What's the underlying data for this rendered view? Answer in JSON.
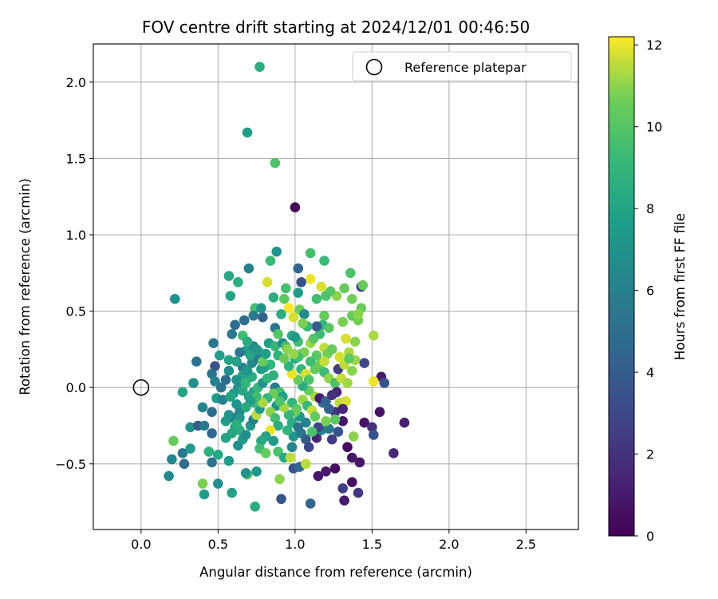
{
  "chart_data": {
    "type": "scatter",
    "title": "FOV centre drift starting at 2024/12/01 00:46:50",
    "xlabel": "Angular distance from reference (arcmin)",
    "ylabel": "Rotation from reference (arcmin)",
    "xlim": [
      -0.31,
      2.84
    ],
    "ylim": [
      -0.93,
      2.25
    ],
    "xticks": [
      0.0,
      0.5,
      1.0,
      1.5,
      2.0,
      2.5
    ],
    "xtick_labels": [
      "0.0",
      "0.5",
      "1.0",
      "1.5",
      "2.0",
      "2.5"
    ],
    "yticks": [
      -0.5,
      0.0,
      0.5,
      1.0,
      1.5,
      2.0
    ],
    "ytick_labels": [
      "−0.5",
      "0.0",
      "0.5",
      "1.0",
      "1.5",
      "2.0"
    ],
    "grid": true,
    "legend": {
      "position": "top-right",
      "entries": [
        "Reference platepar"
      ]
    },
    "colorbar": {
      "label": "Hours from first FF file",
      "range": [
        0,
        12.2
      ],
      "ticks": [
        0,
        2,
        4,
        6,
        8,
        10,
        12
      ],
      "tick_labels": [
        "0",
        "2",
        "4",
        "6",
        "8",
        "10",
        "12"
      ],
      "colormap": "viridis"
    },
    "reference_point": {
      "x": 0.0,
      "y": 0.0,
      "label": "Reference platepar"
    },
    "columns": [
      "x",
      "y",
      "hours"
    ],
    "points": [
      [
        0.77,
        2.1,
        8.5
      ],
      [
        0.69,
        1.67,
        7.6
      ],
      [
        0.87,
        1.47,
        9.8
      ],
      [
        1.0,
        1.18,
        0.2
      ],
      [
        0.88,
        0.89,
        7.1
      ],
      [
        1.1,
        0.88,
        9.6
      ],
      [
        1.19,
        0.83,
        9.3
      ],
      [
        0.7,
        0.78,
        6.0
      ],
      [
        1.02,
        0.78,
        4.5
      ],
      [
        0.22,
        0.58,
        7.0
      ],
      [
        0.57,
        0.73,
        8.2
      ],
      [
        0.63,
        0.69,
        8.5
      ],
      [
        0.58,
        0.6,
        8.0
      ],
      [
        0.74,
        0.52,
        9.5
      ],
      [
        0.73,
        0.47,
        5.6
      ],
      [
        0.61,
        0.41,
        4.8
      ],
      [
        0.59,
        0.35,
        5.6
      ],
      [
        0.79,
        0.46,
        4.3
      ],
      [
        0.47,
        0.29,
        5.5
      ],
      [
        0.36,
        0.17,
        5.2
      ],
      [
        0.51,
        0.21,
        7.5
      ],
      [
        0.57,
        0.18,
        8.0
      ],
      [
        0.48,
        0.14,
        3.5
      ],
      [
        0.46,
        0.09,
        5.3
      ],
      [
        0.34,
        0.03,
        6.8
      ],
      [
        0.27,
        -0.03,
        8.0
      ],
      [
        0.49,
        -0.07,
        7.5
      ],
      [
        0.53,
        -0.08,
        6.1
      ],
      [
        0.46,
        -0.16,
        5.0
      ],
      [
        0.4,
        -0.13,
        6.2
      ],
      [
        0.32,
        -0.26,
        7.0
      ],
      [
        0.37,
        -0.25,
        4.0
      ],
      [
        0.41,
        -0.25,
        5.7
      ],
      [
        0.46,
        -0.3,
        4.5
      ],
      [
        0.21,
        -0.35,
        10.5
      ],
      [
        0.27,
        -0.43,
        5.6
      ],
      [
        0.32,
        -0.4,
        7.4
      ],
      [
        0.2,
        -0.47,
        6.2
      ],
      [
        0.28,
        -0.5,
        4.8
      ],
      [
        0.18,
        -0.58,
        6.5
      ],
      [
        0.46,
        -0.49,
        5.2
      ],
      [
        0.5,
        -0.44,
        8.2
      ],
      [
        0.44,
        -0.42,
        8.6
      ],
      [
        0.4,
        -0.63,
        10.8
      ],
      [
        0.41,
        -0.7,
        7.5
      ],
      [
        0.5,
        -0.63,
        6.8
      ],
      [
        0.59,
        -0.69,
        7.8
      ],
      [
        0.57,
        -0.48,
        7.5
      ],
      [
        0.69,
        -0.57,
        10.2
      ],
      [
        0.74,
        -0.78,
        8.5
      ],
      [
        0.75,
        -0.55,
        7.3
      ],
      [
        0.68,
        -0.56,
        7.0
      ],
      [
        0.9,
        -0.6,
        11.0
      ],
      [
        0.91,
        -0.73,
        3.5
      ],
      [
        1.1,
        -0.76,
        4.5
      ],
      [
        0.99,
        -0.53,
        3.5
      ],
      [
        1.03,
        -0.52,
        4.5
      ],
      [
        1.07,
        -0.5,
        11.5
      ],
      [
        1.15,
        -0.58,
        0.8
      ],
      [
        1.2,
        -0.55,
        1.0
      ],
      [
        1.26,
        -0.53,
        0.5
      ],
      [
        1.32,
        -0.74,
        1.0
      ],
      [
        1.31,
        -0.66,
        2.6
      ],
      [
        1.37,
        -0.62,
        0.6
      ],
      [
        1.41,
        -0.69,
        2.2
      ],
      [
        1.42,
        -0.49,
        0.8
      ],
      [
        1.37,
        -0.46,
        0.9
      ],
      [
        1.34,
        -0.39,
        0.4
      ],
      [
        1.38,
        -0.32,
        11.0
      ],
      [
        1.45,
        -0.23,
        0.8
      ],
      [
        1.5,
        -0.26,
        2.0
      ],
      [
        1.51,
        -0.31,
        3.5
      ],
      [
        1.55,
        -0.16,
        0.8
      ],
      [
        1.64,
        -0.43,
        1.5
      ],
      [
        1.71,
        -0.23,
        1.2
      ],
      [
        1.56,
        0.07,
        1.0
      ],
      [
        1.58,
        0.03,
        3.5
      ],
      [
        1.51,
        0.04,
        12.0
      ],
      [
        1.45,
        0.16,
        3.0
      ],
      [
        1.35,
        0.23,
        11.3
      ],
      [
        1.39,
        0.3,
        11.0
      ],
      [
        1.33,
        0.32,
        11.8
      ],
      [
        1.31,
        0.43,
        10.8
      ],
      [
        1.37,
        0.47,
        10.5
      ],
      [
        1.41,
        0.44,
        10.7
      ],
      [
        1.43,
        0.52,
        10.5
      ],
      [
        1.37,
        0.58,
        10.7
      ],
      [
        1.41,
        0.48,
        11.0
      ],
      [
        1.51,
        0.34,
        11.3
      ],
      [
        1.43,
        0.66,
        2.5
      ],
      [
        1.44,
        0.67,
        10.5
      ],
      [
        1.36,
        0.75,
        9.8
      ],
      [
        1.32,
        0.65,
        10.5
      ],
      [
        1.27,
        0.6,
        11.0
      ],
      [
        1.23,
        0.63,
        10.2
      ],
      [
        1.2,
        0.6,
        9.8
      ],
      [
        1.17,
        0.66,
        11.8
      ],
      [
        1.14,
        0.58,
        9.5
      ],
      [
        1.1,
        0.71,
        12.0
      ],
      [
        1.04,
        0.69,
        3.5
      ],
      [
        1.02,
        0.62,
        7.5
      ],
      [
        0.94,
        0.65,
        9.6
      ],
      [
        0.93,
        0.58,
        10.3
      ],
      [
        0.86,
        0.59,
        8.5
      ],
      [
        0.82,
        0.69,
        11.8
      ],
      [
        0.84,
        0.83,
        9.3
      ],
      [
        0.96,
        0.52,
        12.2
      ],
      [
        1.03,
        0.51,
        10.6
      ],
      [
        0.99,
        0.46,
        11.8
      ],
      [
        1.06,
        0.48,
        6.6
      ],
      [
        0.91,
        0.48,
        8.5
      ],
      [
        0.78,
        0.52,
        7.0
      ],
      [
        0.67,
        0.44,
        5.0
      ],
      [
        0.66,
        0.34,
        9.5
      ],
      [
        0.73,
        0.27,
        6.2
      ],
      [
        0.68,
        0.24,
        7.5
      ],
      [
        0.77,
        0.23,
        9.0
      ],
      [
        0.83,
        0.29,
        7.6
      ],
      [
        0.87,
        0.27,
        9.0
      ],
      [
        0.87,
        0.39,
        5.5
      ],
      [
        0.89,
        0.35,
        10.0
      ],
      [
        0.92,
        0.29,
        6.5
      ],
      [
        0.98,
        0.34,
        8.5
      ],
      [
        1.02,
        0.3,
        9.5
      ],
      [
        1.04,
        0.22,
        10.5
      ],
      [
        1.1,
        0.29,
        11.2
      ],
      [
        1.12,
        0.32,
        10.0
      ],
      [
        1.19,
        0.26,
        11.5
      ],
      [
        1.21,
        0.22,
        10.7
      ],
      [
        1.16,
        0.35,
        9.4
      ],
      [
        1.18,
        0.41,
        9.0
      ],
      [
        1.22,
        0.39,
        10.1
      ],
      [
        1.19,
        0.47,
        10.5
      ],
      [
        1.14,
        0.4,
        4.0
      ],
      [
        1.08,
        0.4,
        9.0
      ],
      [
        1.05,
        0.42,
        10.8
      ],
      [
        1.0,
        0.33,
        7.3
      ],
      [
        0.94,
        0.27,
        9.7
      ],
      [
        0.89,
        0.21,
        8.7
      ],
      [
        0.84,
        0.15,
        9.0
      ],
      [
        0.8,
        0.13,
        8.0
      ],
      [
        0.78,
        0.12,
        7.5
      ],
      [
        0.73,
        0.18,
        6.5
      ],
      [
        0.66,
        0.13,
        6.0
      ],
      [
        0.66,
        0.08,
        8.0
      ],
      [
        0.62,
        0.05,
        7.0
      ],
      [
        0.63,
        0.0,
        6.8
      ],
      [
        0.66,
        -0.02,
        8.2
      ],
      [
        0.6,
        -0.04,
        7.5
      ],
      [
        0.58,
        -0.06,
        8.0
      ],
      [
        0.62,
        -0.11,
        7.2
      ],
      [
        0.64,
        -0.16,
        6.5
      ],
      [
        0.6,
        -0.2,
        5.5
      ],
      [
        0.57,
        -0.18,
        7.0
      ],
      [
        0.55,
        -0.22,
        7.4
      ],
      [
        0.61,
        -0.26,
        7.6
      ],
      [
        0.64,
        -0.28,
        8.5
      ],
      [
        0.59,
        -0.3,
        8.2
      ],
      [
        0.55,
        -0.33,
        8.0
      ],
      [
        0.63,
        -0.38,
        6.8
      ],
      [
        0.66,
        -0.34,
        7.5
      ],
      [
        0.68,
        -0.31,
        6.8
      ],
      [
        0.71,
        -0.25,
        7.1
      ],
      [
        0.73,
        -0.21,
        6.0
      ],
      [
        0.75,
        -0.18,
        11.5
      ],
      [
        0.77,
        -0.14,
        7.5
      ],
      [
        0.73,
        -0.1,
        9.5
      ],
      [
        0.7,
        -0.06,
        8.0
      ],
      [
        0.73,
        -0.03,
        8.0
      ],
      [
        0.76,
        0.0,
        9.2
      ],
      [
        0.79,
        0.03,
        7.0
      ],
      [
        0.82,
        0.06,
        9.0
      ],
      [
        0.86,
        0.08,
        8.7
      ],
      [
        0.87,
        0.0,
        5.8
      ],
      [
        0.9,
        -0.03,
        9.5
      ],
      [
        0.92,
        -0.06,
        7.8
      ],
      [
        0.88,
        -0.12,
        7.0
      ],
      [
        0.84,
        -0.16,
        11.0
      ],
      [
        0.87,
        -0.2,
        9.6
      ],
      [
        0.89,
        -0.25,
        8.5
      ],
      [
        0.84,
        -0.28,
        12.0
      ],
      [
        0.81,
        -0.32,
        7.8
      ],
      [
        0.78,
        -0.35,
        8.3
      ],
      [
        0.77,
        -0.4,
        9.5
      ],
      [
        0.81,
        -0.43,
        10.4
      ],
      [
        0.86,
        -0.35,
        7.5
      ],
      [
        0.89,
        -0.42,
        9.8
      ],
      [
        0.93,
        -0.46,
        8.3
      ],
      [
        0.97,
        -0.46,
        11.5
      ],
      [
        0.98,
        -0.39,
        6.2
      ],
      [
        0.99,
        -0.32,
        7.3
      ],
      [
        0.95,
        -0.28,
        8.9
      ],
      [
        0.98,
        -0.23,
        8.5
      ],
      [
        1.02,
        -0.26,
        5.2
      ],
      [
        1.04,
        -0.3,
        5.5
      ],
      [
        1.07,
        -0.34,
        4.0
      ],
      [
        1.09,
        -0.39,
        3.0
      ],
      [
        1.14,
        -0.33,
        1.5
      ],
      [
        1.17,
        -0.28,
        6.0
      ],
      [
        1.22,
        -0.27,
        5.5
      ],
      [
        1.24,
        -0.34,
        2.5
      ],
      [
        1.28,
        -0.29,
        3.5
      ],
      [
        1.31,
        -0.22,
        0.8
      ],
      [
        1.26,
        -0.16,
        2.0
      ],
      [
        1.22,
        -0.14,
        4.2
      ],
      [
        1.18,
        -0.1,
        5.3
      ],
      [
        1.13,
        -0.06,
        11.3
      ],
      [
        1.09,
        -0.02,
        10.5
      ],
      [
        1.05,
        0.01,
        8.5
      ],
      [
        1.02,
        0.05,
        10.5
      ],
      [
        0.98,
        0.09,
        12.0
      ],
      [
        0.96,
        0.14,
        8.8
      ],
      [
        0.93,
        0.19,
        10.5
      ],
      [
        1.0,
        0.19,
        7.9
      ],
      [
        1.04,
        0.12,
        9.2
      ],
      [
        1.07,
        0.09,
        11.8
      ],
      [
        1.09,
        0.05,
        9.8
      ],
      [
        1.13,
        0.12,
        10.4
      ],
      [
        1.16,
        0.15,
        10.5
      ],
      [
        1.19,
        0.1,
        9.3
      ],
      [
        1.22,
        0.06,
        11.1
      ],
      [
        1.26,
        0.03,
        9.8
      ],
      [
        1.27,
        -0.03,
        1.5
      ],
      [
        1.3,
        0.06,
        11.6
      ],
      [
        1.28,
        0.12,
        2.5
      ],
      [
        1.32,
        0.15,
        11.5
      ],
      [
        1.34,
        0.03,
        11.2
      ],
      [
        1.37,
        0.11,
        11.0
      ],
      [
        1.39,
        0.18,
        11.2
      ],
      [
        1.35,
        0.19,
        10.3
      ],
      [
        1.29,
        0.2,
        11.8
      ],
      [
        1.24,
        0.25,
        10.5
      ],
      [
        1.19,
        0.17,
        11.6
      ],
      [
        1.14,
        0.21,
        10.2
      ],
      [
        1.1,
        0.17,
        9.5
      ],
      [
        1.06,
        0.23,
        10.8
      ],
      [
        1.02,
        0.2,
        9.5
      ],
      [
        0.99,
        0.22,
        11.1
      ],
      [
        0.95,
        0.25,
        11.0
      ],
      [
        0.98,
        -0.1,
        8.9
      ],
      [
        1.01,
        -0.14,
        10.2
      ],
      [
        1.05,
        -0.08,
        11.1
      ],
      [
        1.08,
        -0.12,
        9.2
      ],
      [
        1.11,
        -0.15,
        11.6
      ],
      [
        1.13,
        -0.19,
        10.4
      ],
      [
        1.16,
        -0.07,
        1.0
      ],
      [
        1.2,
        -0.09,
        4.5
      ],
      [
        1.24,
        -0.05,
        2.0
      ],
      [
        1.29,
        -0.1,
        11.5
      ],
      [
        1.33,
        -0.09,
        11.8
      ],
      [
        1.31,
        -0.14,
        1.5
      ],
      [
        1.26,
        -0.21,
        10.2
      ],
      [
        1.2,
        -0.22,
        10.8
      ],
      [
        1.15,
        -0.26,
        3.0
      ],
      [
        1.11,
        -0.29,
        9.8
      ],
      [
        1.07,
        -0.23,
        6.1
      ],
      [
        1.03,
        -0.19,
        7.0
      ],
      [
        1.0,
        -0.16,
        10.5
      ],
      [
        0.96,
        -0.18,
        9.0
      ],
      [
        0.93,
        -0.13,
        11.2
      ],
      [
        0.9,
        -0.09,
        9.8
      ],
      [
        0.86,
        -0.04,
        10.6
      ],
      [
        0.82,
        -0.07,
        9.0
      ],
      [
        0.79,
        -0.1,
        11.3
      ],
      [
        0.75,
        -0.06,
        9.4
      ],
      [
        0.71,
        -0.09,
        7.6
      ],
      [
        0.68,
        -0.13,
        8.3
      ],
      [
        0.64,
        -0.2,
        7.3
      ],
      [
        0.62,
        -0.24,
        8.6
      ],
      [
        0.68,
        0.03,
        9.0
      ],
      [
        0.72,
        0.07,
        8.5
      ],
      [
        0.69,
        0.11,
        7.3
      ],
      [
        0.72,
        0.16,
        6.4
      ],
      [
        0.76,
        0.19,
        5.8
      ],
      [
        0.79,
        0.17,
        10.4
      ],
      [
        0.81,
        0.22,
        7.6
      ],
      [
        0.75,
        0.25,
        7.2
      ],
      [
        0.71,
        0.21,
        8.0
      ],
      [
        0.69,
        0.3,
        8.5
      ],
      [
        0.64,
        0.23,
        5.6
      ],
      [
        0.62,
        0.17,
        7.8
      ],
      [
        0.57,
        0.11,
        6.5
      ],
      [
        0.55,
        0.05,
        4.8
      ],
      [
        0.52,
        0.0,
        5.3
      ],
      [
        0.48,
        0.04,
        6.1
      ]
    ]
  }
}
